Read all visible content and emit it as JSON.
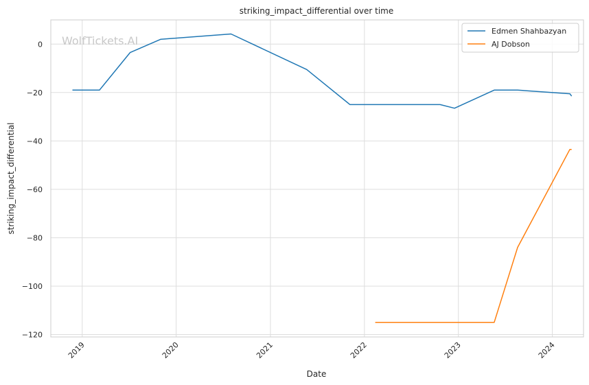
{
  "chart_data": {
    "type": "line",
    "title": "striking_impact_differential over time",
    "xlabel": "Date",
    "ylabel": "striking_impact_differential",
    "x_axis_type": "date",
    "xlim": [
      "2018-09-01",
      "2024-05-01"
    ],
    "ylim": [
      -121,
      10
    ],
    "x_ticks": [
      {
        "date": "2019-01-01",
        "label": "2019"
      },
      {
        "date": "2020-01-01",
        "label": "2020"
      },
      {
        "date": "2021-01-01",
        "label": "2021"
      },
      {
        "date": "2022-01-01",
        "label": "2022"
      },
      {
        "date": "2023-01-01",
        "label": "2023"
      },
      {
        "date": "2024-01-01",
        "label": "2024"
      }
    ],
    "y_ticks": [
      0,
      -20,
      -40,
      -60,
      -80,
      -100,
      -120
    ],
    "y_tick_labels": [
      "0",
      "−20",
      "−40",
      "−60",
      "−80",
      "−100",
      "−120"
    ],
    "grid": true,
    "legend_position": "top-right",
    "watermark": "WolfTickets.AI",
    "series": [
      {
        "name": "Edmen Shahbazyan",
        "color": "#1f77b4",
        "points": [
          {
            "x": "2018-11-24",
            "y": -19
          },
          {
            "x": "2019-03-09",
            "y": -19
          },
          {
            "x": "2019-07-06",
            "y": -3.5
          },
          {
            "x": "2019-11-02",
            "y": 2
          },
          {
            "x": "2020-08-01",
            "y": 4.2
          },
          {
            "x": "2021-05-22",
            "y": -10.5
          },
          {
            "x": "2021-11-06",
            "y": -25
          },
          {
            "x": "2022-10-22",
            "y": -25
          },
          {
            "x": "2022-12-17",
            "y": -26.5
          },
          {
            "x": "2023-05-20",
            "y": -19
          },
          {
            "x": "2023-08-19",
            "y": -19
          },
          {
            "x": "2024-03-09",
            "y": -20.5
          },
          {
            "x": "2024-03-16",
            "y": -21.5
          }
        ]
      },
      {
        "name": "AJ Dobson",
        "color": "#ff7f0e",
        "points": [
          {
            "x": "2022-02-12",
            "y": -115
          },
          {
            "x": "2023-05-20",
            "y": -115
          },
          {
            "x": "2023-08-19",
            "y": -84
          },
          {
            "x": "2024-03-09",
            "y": -43.5
          },
          {
            "x": "2024-03-16",
            "y": -43.5
          }
        ]
      }
    ]
  }
}
